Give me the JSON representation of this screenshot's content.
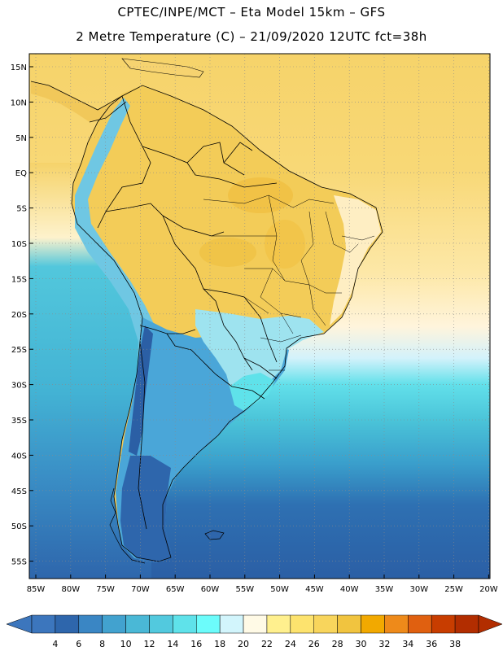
{
  "title_line1": "CPTEC/INPE/MCT –  Eta Model 15km – GFS",
  "title_line2": "2 Metre Temperature (C) – 21/09/2020 12UTC fct=38h",
  "lat_labels": [
    "15N",
    "10N",
    "5N",
    "EQ",
    "5S",
    "10S",
    "15S",
    "20S",
    "25S",
    "30S",
    "35S",
    "40S",
    "45S",
    "50S",
    "55S"
  ],
  "lon_labels": [
    "85W",
    "80W",
    "75W",
    "70W",
    "65W",
    "60W",
    "55W",
    "50W",
    "45W",
    "40W",
    "35W",
    "30W",
    "25W",
    "20W"
  ],
  "colorbar": {
    "labels": [
      "4",
      "6",
      "8",
      "10",
      "12",
      "14",
      "16",
      "18",
      "20",
      "22",
      "24",
      "26",
      "28",
      "30",
      "32",
      "34",
      "36",
      "38"
    ],
    "colors": [
      "#3c76bd",
      "#2e66ac",
      "#3a86c4",
      "#42a2cf",
      "#4ab8d6",
      "#52c9de",
      "#5fe2ea",
      "#6cfcfb",
      "#d2f5fc",
      "#fffae6",
      "#fff08e",
      "#fde36e",
      "#f8d55c",
      "#f1c43f",
      "#f2a900",
      "#ee8a1a",
      "#e06010",
      "#c83d00",
      "#b22d00"
    ]
  },
  "map": {
    "land_color_north": "#f3cc58",
    "highland_color": "#6fc7e3",
    "south_land_color": "#4aa6d8",
    "ocean_colors": [
      "#f9dc82",
      "#fff3d6",
      "#cdeffa",
      "#4ec3d8",
      "#3399c6",
      "#2d62a8"
    ]
  }
}
